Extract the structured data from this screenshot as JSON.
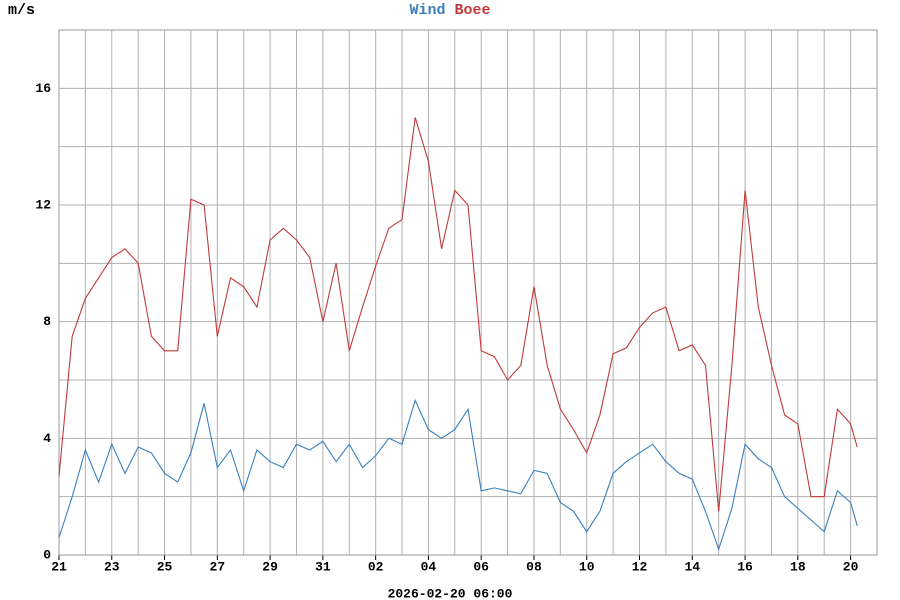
{
  "chart_data": {
    "type": "line",
    "y_label": "m/s",
    "x_label": "2026-02-20 06:00",
    "x": [
      0,
      0.5,
      1,
      1.5,
      2,
      2.5,
      3,
      3.5,
      4,
      4.5,
      5,
      5.5,
      6,
      6.5,
      7,
      7.5,
      8,
      8.5,
      9,
      9.5,
      10,
      10.5,
      11,
      11.5,
      12,
      12.5,
      13,
      13.5,
      14,
      14.5,
      15,
      15.5,
      16,
      16.5,
      17,
      17.5,
      18,
      18.5,
      19,
      19.5,
      20,
      20.5,
      21,
      21.5,
      22,
      22.5,
      23,
      23.5,
      24,
      24.5,
      25,
      25.5,
      26,
      26.5,
      27,
      27.5,
      28,
      28.5,
      29,
      29.5,
      30,
      30.25
    ],
    "series": [
      {
        "name": "Wind",
        "color": "#3a7fbf",
        "values": [
          0.6,
          2.0,
          3.6,
          2.5,
          3.8,
          2.8,
          3.7,
          3.5,
          2.8,
          2.5,
          3.5,
          5.2,
          3.0,
          3.6,
          2.2,
          3.6,
          3.2,
          3.0,
          3.8,
          3.6,
          3.9,
          3.2,
          3.8,
          3.0,
          3.4,
          4.0,
          3.8,
          5.3,
          4.3,
          4.0,
          4.3,
          5.0,
          2.2,
          2.3,
          2.2,
          2.1,
          2.9,
          2.8,
          1.8,
          1.5,
          0.8,
          1.5,
          2.8,
          3.2,
          3.5,
          3.8,
          3.2,
          2.8,
          2.6,
          1.5,
          0.2,
          1.6,
          3.8,
          3.3,
          3.0,
          2.0,
          1.6,
          1.2,
          0.8,
          2.2,
          1.8,
          1.0
        ]
      },
      {
        "name": "Boee",
        "color": "#c03a3a",
        "values": [
          2.7,
          7.5,
          8.8,
          9.5,
          10.2,
          10.5,
          10.0,
          7.5,
          7.0,
          7.0,
          12.2,
          12.0,
          7.5,
          9.5,
          9.2,
          8.5,
          10.8,
          11.2,
          10.8,
          10.2,
          8.0,
          10.0,
          7.0,
          8.5,
          9.9,
          11.2,
          11.5,
          15.0,
          13.5,
          10.5,
          12.5,
          12.0,
          7.0,
          6.8,
          6.0,
          6.5,
          9.2,
          6.5,
          5.0,
          4.3,
          3.5,
          4.8,
          6.9,
          7.1,
          7.8,
          8.3,
          8.5,
          7.0,
          7.2,
          6.5,
          1.5,
          6.5,
          12.5,
          8.5,
          6.5,
          4.8,
          4.5,
          2.0,
          2.0,
          5.0,
          4.5,
          3.7
        ]
      }
    ],
    "xlim": [
      0,
      31
    ],
    "xticks": [
      {
        "value": 0,
        "label": "21"
      },
      {
        "value": 2,
        "label": "23"
      },
      {
        "value": 4,
        "label": "25"
      },
      {
        "value": 6,
        "label": "27"
      },
      {
        "value": 8,
        "label": "29"
      },
      {
        "value": 10,
        "label": "31"
      },
      {
        "value": 12,
        "label": "02"
      },
      {
        "value": 14,
        "label": "04"
      },
      {
        "value": 16,
        "label": "06"
      },
      {
        "value": 18,
        "label": "08"
      },
      {
        "value": 20,
        "label": "10"
      },
      {
        "value": 22,
        "label": "12"
      },
      {
        "value": 24,
        "label": "14"
      },
      {
        "value": 26,
        "label": "16"
      },
      {
        "value": 28,
        "label": "18"
      },
      {
        "value": 30,
        "label": "20"
      }
    ],
    "x_minor_ticks": [
      1,
      3,
      5,
      7,
      9,
      11,
      13,
      15,
      17,
      19,
      21,
      23,
      25,
      27,
      29
    ],
    "ylim": [
      0,
      18
    ],
    "yticks": [
      0,
      4,
      8,
      12,
      16
    ],
    "y_minor_ticks": [
      2,
      6,
      10,
      14,
      18
    ],
    "grid": true
  }
}
